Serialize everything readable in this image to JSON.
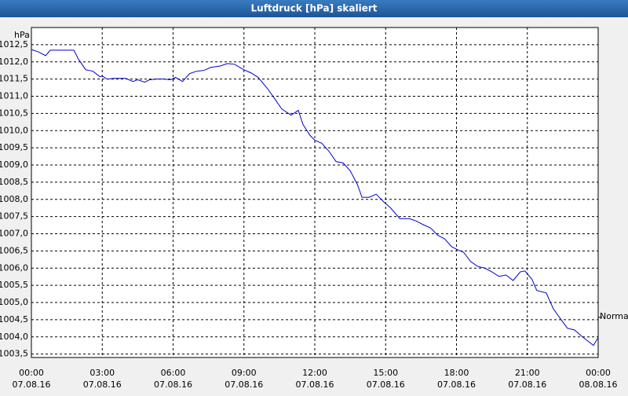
{
  "chart_data": {
    "type": "line",
    "title": "Luftdruck [hPa] skaliert",
    "y_unit": "hPa",
    "x": [
      0,
      0.3,
      0.6,
      0.8,
      1.0,
      1.4,
      1.8,
      2.0,
      2.3,
      2.6,
      2.9,
      3.0,
      3.2,
      3.5,
      4.0,
      4.3,
      4.5,
      4.8,
      5.0,
      5.3,
      5.6,
      5.9,
      6.1,
      6.4,
      6.7,
      7.0,
      7.3,
      7.6,
      8.0,
      8.3,
      8.6,
      9.0,
      9.3,
      9.6,
      10.0,
      10.3,
      10.6,
      11.0,
      11.3,
      11.5,
      11.8,
      12.0,
      12.3,
      12.6,
      12.9,
      13.2,
      13.5,
      13.8,
      14.0,
      14.3,
      14.6,
      14.9,
      15.2,
      15.6,
      16.0,
      16.3,
      16.6,
      16.9,
      17.2,
      17.5,
      17.8,
      18.0,
      18.3,
      18.6,
      18.9,
      19.2,
      19.5,
      19.8,
      20.1,
      20.4,
      20.7,
      20.9,
      21.2,
      21.4,
      21.8,
      22.1,
      22.4,
      22.7,
      23.0,
      23.3,
      23.6,
      23.8,
      24.0
    ],
    "series": [
      {
        "name": "Luftdruck",
        "color": "#0000cc",
        "values": [
          1012.36,
          1012.29,
          1012.18,
          1012.34,
          1012.34,
          1012.34,
          1012.34,
          1012.07,
          1011.77,
          1011.73,
          1011.57,
          1011.59,
          1011.5,
          1011.52,
          1011.52,
          1011.43,
          1011.48,
          1011.41,
          1011.48,
          1011.5,
          1011.5,
          1011.48,
          1011.55,
          1011.43,
          1011.66,
          1011.73,
          1011.75,
          1011.84,
          1011.88,
          1011.95,
          1011.93,
          1011.77,
          1011.68,
          1011.55,
          1011.22,
          1010.93,
          1010.63,
          1010.45,
          1010.59,
          1010.18,
          1009.86,
          1009.72,
          1009.63,
          1009.4,
          1009.1,
          1009.06,
          1008.83,
          1008.44,
          1008.06,
          1008.06,
          1008.15,
          1007.94,
          1007.76,
          1007.44,
          1007.44,
          1007.37,
          1007.26,
          1007.17,
          1006.96,
          1006.85,
          1006.62,
          1006.55,
          1006.46,
          1006.19,
          1006.05,
          1006.0,
          1005.89,
          1005.76,
          1005.8,
          1005.64,
          1005.89,
          1005.92,
          1005.67,
          1005.35,
          1005.28,
          1004.82,
          1004.53,
          1004.25,
          1004.2,
          1004.02,
          1003.86,
          1003.75,
          1003.98
        ]
      }
    ],
    "xlim": [
      0,
      24
    ],
    "xticks": [
      {
        "value": 0,
        "label": "00:00"
      },
      {
        "value": 3,
        "label": "03:00"
      },
      {
        "value": 6,
        "label": "06:00"
      },
      {
        "value": 9,
        "label": "09:00"
      },
      {
        "value": 12,
        "label": "12:00"
      },
      {
        "value": 15,
        "label": "15:00"
      },
      {
        "value": 18,
        "label": "18:00"
      },
      {
        "value": 21,
        "label": "21:00"
      },
      {
        "value": 24,
        "label": "00:00"
      }
    ],
    "xtick_dates": [
      "07.08.16",
      "07.08.16",
      "07.08.16",
      "07.08.16",
      "07.08.16",
      "07.08.16",
      "07.08.16",
      "07.08.16",
      "08.08.16"
    ],
    "ylim": [
      1003.4,
      1013.0
    ],
    "yticks": [
      {
        "value": 1003.5,
        "label": "1003,5"
      },
      {
        "value": 1004,
        "label": "1004,0"
      },
      {
        "value": 1004.5,
        "label": "1004,5"
      },
      {
        "value": 1005,
        "label": "1005,0"
      },
      {
        "value": 1005.5,
        "label": "1005,5"
      },
      {
        "value": 1006,
        "label": "1006,0"
      },
      {
        "value": 1006.5,
        "label": "1006,5"
      },
      {
        "value": 1007,
        "label": "1007,0"
      },
      {
        "value": 1007.5,
        "label": "1007,5"
      },
      {
        "value": 1008,
        "label": "1008,0"
      },
      {
        "value": 1008.5,
        "label": "1008,5"
      },
      {
        "value": 1009,
        "label": "1009,0"
      },
      {
        "value": 1009.5,
        "label": "1009,5"
      },
      {
        "value": 1010,
        "label": "1010,0"
      },
      {
        "value": 1010.5,
        "label": "1010,5"
      },
      {
        "value": 1011,
        "label": "1011,0"
      },
      {
        "value": 1011.5,
        "label": "1011,5"
      },
      {
        "value": 1012,
        "label": "1012,0"
      },
      {
        "value": 1012.5,
        "label": "1012,5"
      }
    ],
    "grid": true,
    "reference": {
      "label": "Normal",
      "value": 1004.57
    }
  }
}
